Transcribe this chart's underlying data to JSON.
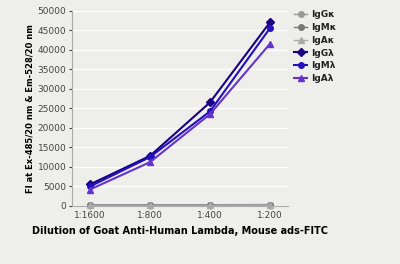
{
  "x_labels": [
    "1:1600",
    "1:800",
    "1:400",
    "1:200"
  ],
  "x_positions": [
    0,
    1,
    2,
    3
  ],
  "series": {
    "IgGκ": {
      "values": [
        200,
        200,
        200,
        250
      ],
      "color": "#999999",
      "marker": "o",
      "linewidth": 1.0,
      "markersize": 4,
      "linestyle": "-"
    },
    "IgMκ": {
      "values": [
        300,
        300,
        300,
        350
      ],
      "color": "#777777",
      "marker": "o",
      "linewidth": 1.0,
      "markersize": 4,
      "linestyle": "-"
    },
    "IgAκ": {
      "values": [
        200,
        200,
        200,
        250
      ],
      "color": "#aaaaaa",
      "marker": "^",
      "linewidth": 1.0,
      "markersize": 4,
      "linestyle": "-"
    },
    "IgGλ": {
      "values": [
        5500,
        12800,
        26500,
        47000
      ],
      "color": "#1a0080",
      "marker": "D",
      "linewidth": 1.5,
      "markersize": 4,
      "linestyle": "-"
    },
    "IgMλ": {
      "values": [
        5000,
        12500,
        24200,
        45500
      ],
      "color": "#2211bb",
      "marker": "o",
      "linewidth": 1.5,
      "markersize": 4,
      "linestyle": "-"
    },
    "IgAλ": {
      "values": [
        4200,
        11200,
        23500,
        41500
      ],
      "color": "#6633cc",
      "marker": "^",
      "linewidth": 1.5,
      "markersize": 4,
      "linestyle": "-"
    }
  },
  "ylabel": "FI at Ex-485/20 nm & Em-528/20 nm",
  "xlabel": "Dilution of Goat Anti-Human Lambda, Mouse ads-FITC",
  "ylim": [
    0,
    50000
  ],
  "yticks": [
    0,
    5000,
    10000,
    15000,
    20000,
    25000,
    30000,
    35000,
    40000,
    45000,
    50000
  ],
  "background_color": "#eeeeea",
  "grid_color": "#ffffff",
  "legend_order": [
    "IgGκ",
    "IgMκ",
    "IgAκ",
    "IgGλ",
    "IgMλ",
    "IgAλ"
  ]
}
